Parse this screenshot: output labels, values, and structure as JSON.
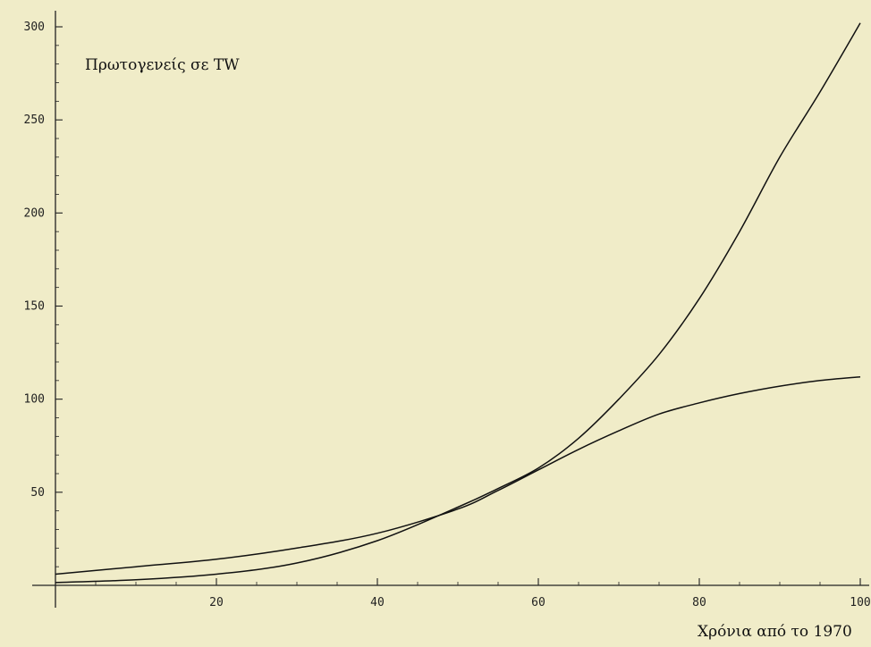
{
  "chart_data": {
    "type": "line",
    "ylabel": "Πρωτογενείς σε TW",
    "xlabel": "Χρόνια από το 1970",
    "xlim": [
      0,
      100
    ],
    "ylim": [
      0,
      300
    ],
    "x_ticks": [
      20,
      40,
      60,
      80,
      100
    ],
    "y_ticks": [
      50,
      100,
      150,
      200,
      250,
      300
    ],
    "grid": false,
    "background": "#f0ecc8",
    "line_color": "#111111",
    "series": [
      {
        "x": [
          0,
          10,
          20,
          30,
          40,
          50,
          55,
          60,
          65,
          70,
          75,
          80,
          85,
          90,
          95,
          100
        ],
        "y": [
          1.5,
          3,
          6,
          12,
          24,
          42,
          52,
          63,
          79,
          100,
          124,
          154,
          190,
          230,
          265,
          302
        ]
      },
      {
        "x": [
          0,
          10,
          20,
          30,
          40,
          50,
          55,
          60,
          65,
          70,
          75,
          80,
          85,
          90,
          95,
          100
        ],
        "y": [
          6,
          10,
          14,
          20,
          28,
          41,
          51,
          62,
          73,
          83,
          92,
          98,
          103,
          107,
          110,
          112
        ]
      }
    ]
  }
}
